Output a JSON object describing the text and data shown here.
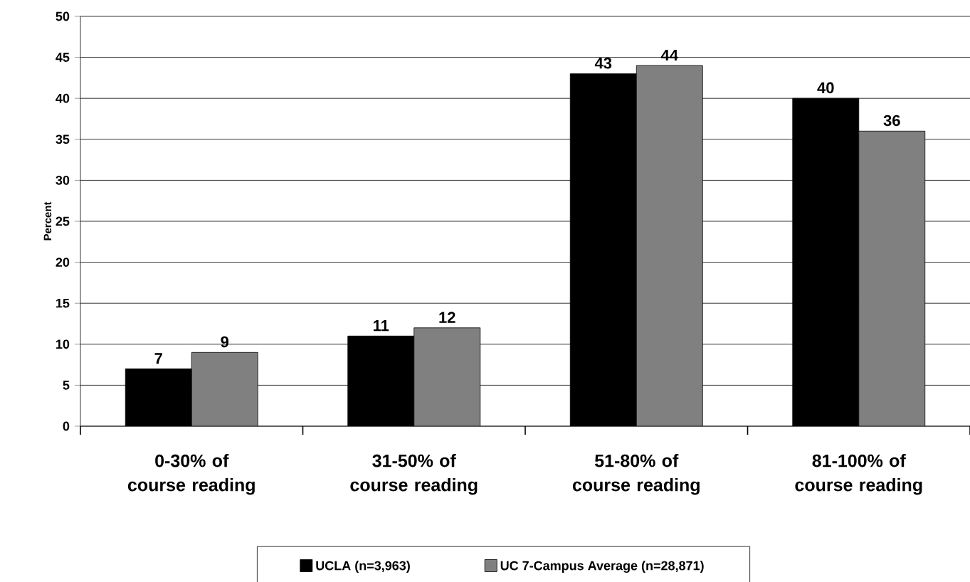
{
  "chart_data": {
    "type": "bar",
    "ylabel": "Percent",
    "categories": [
      "0-30% of course reading",
      "31-50% of course reading",
      "51-80% of course reading",
      "81-100% of course reading"
    ],
    "series": [
      {
        "name": "UCLA (n=3,963)",
        "color": "#000000",
        "values": [
          7,
          11,
          43,
          40
        ]
      },
      {
        "name": "UC 7-Campus Average (n=28,871)",
        "color": "#808080",
        "values": [
          9,
          12,
          44,
          36
        ]
      }
    ],
    "ylim": [
      0,
      50
    ],
    "yticks": [
      0,
      5,
      10,
      15,
      20,
      25,
      30,
      35,
      40,
      45,
      50
    ],
    "grid": "y",
    "legend": "bottom",
    "data_labels": true
  }
}
